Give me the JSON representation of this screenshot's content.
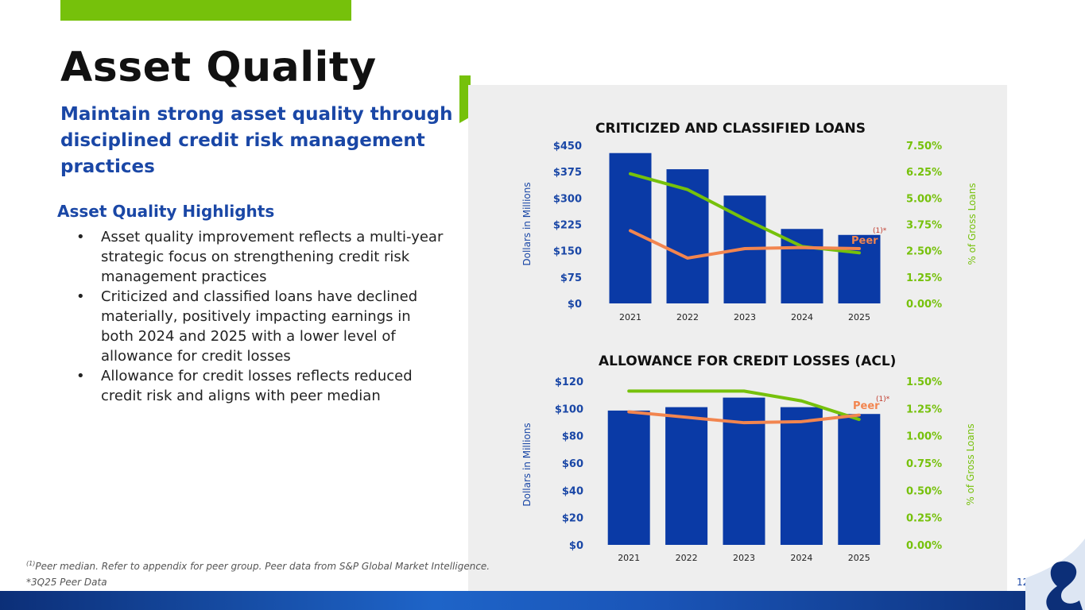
{
  "slide": {
    "title": "Asset Quality",
    "subtitle": "Maintain strong asset quality through disciplined credit risk management practices",
    "highlights_heading": "Asset Quality Highlights",
    "bullets": [
      "Asset quality improvement reflects a multi-year strategic focus on strengthening credit risk management practices",
      "Criticized and classified loans have declined materially, positively impacting earnings in both 2024 and 2025 with a lower level of allowance for credit losses",
      "Allowance for credit losses reflects reduced credit risk and aligns with peer median"
    ],
    "footnote_sup": "(1)",
    "footnote_1": "Peer median. Refer to appendix for peer group. Peer data from S&P Global Market Intelligence.",
    "footnote_2": "*3Q25 Peer Data",
    "page_number": "12"
  },
  "colors": {
    "accent_green": "#76c10b",
    "brand_blue": "#1a47a6",
    "bar_blue": "#0a3aa6",
    "line_green": "#76c10b",
    "line_orange": "#f2854f"
  },
  "chart_data": [
    {
      "type": "bar",
      "title": "CRITICIZED AND CLASSIFIED LOANS",
      "categories": [
        "2021",
        "2022",
        "2023",
        "2024",
        "2025"
      ],
      "ylabel": "Dollars in Millions",
      "ylabel_right": "% of Gross Loans",
      "ylim": [
        0,
        450
      ],
      "ylim_right": [
        0,
        7.5
      ],
      "yticks": [
        "$0",
        "$75",
        "$150",
        "$225",
        "$300",
        "$375",
        "$450"
      ],
      "yticks_right": [
        "0.00%",
        "1.25%",
        "2.50%",
        "3.75%",
        "5.00%",
        "6.25%",
        "7.50%"
      ],
      "series": [
        {
          "values": [
            428,
            382,
            307,
            212,
            195
          ]
        },
        {
          "values": [
            6.15,
            5.4,
            4.0,
            2.7,
            2.4
          ]
        },
        {
          "name": "Peer",
          "values": [
            3.45,
            2.15,
            2.6,
            2.65,
            2.6
          ]
        }
      ],
      "peer_label": "Peer",
      "peer_note": "(1)*"
    },
    {
      "type": "bar",
      "title": "ALLOWANCE FOR CREDIT LOSSES (ACL)",
      "categories": [
        "2021",
        "2022",
        "2023",
        "2024",
        "2025"
      ],
      "ylabel": "Dollars in Millions",
      "ylabel_right": "% of Gross Loans",
      "ylim": [
        0,
        120
      ],
      "ylim_right": [
        0,
        1.5
      ],
      "yticks": [
        "$0",
        "$20",
        "$40",
        "$60",
        "$80",
        "$100",
        "$120"
      ],
      "yticks_right": [
        "0.00%",
        "0.25%",
        "0.50%",
        "0.75%",
        "1.00%",
        "1.25%",
        "1.50%"
      ],
      "series": [
        {
          "values": [
            98.5,
            101,
            108,
            101,
            96
          ]
        },
        {
          "values": [
            1.41,
            1.41,
            1.41,
            1.32,
            1.15
          ]
        },
        {
          "name": "Peer",
          "values": [
            1.22,
            1.17,
            1.12,
            1.13,
            1.19
          ]
        }
      ],
      "peer_label": "Peer",
      "peer_note": "(1)*"
    }
  ]
}
